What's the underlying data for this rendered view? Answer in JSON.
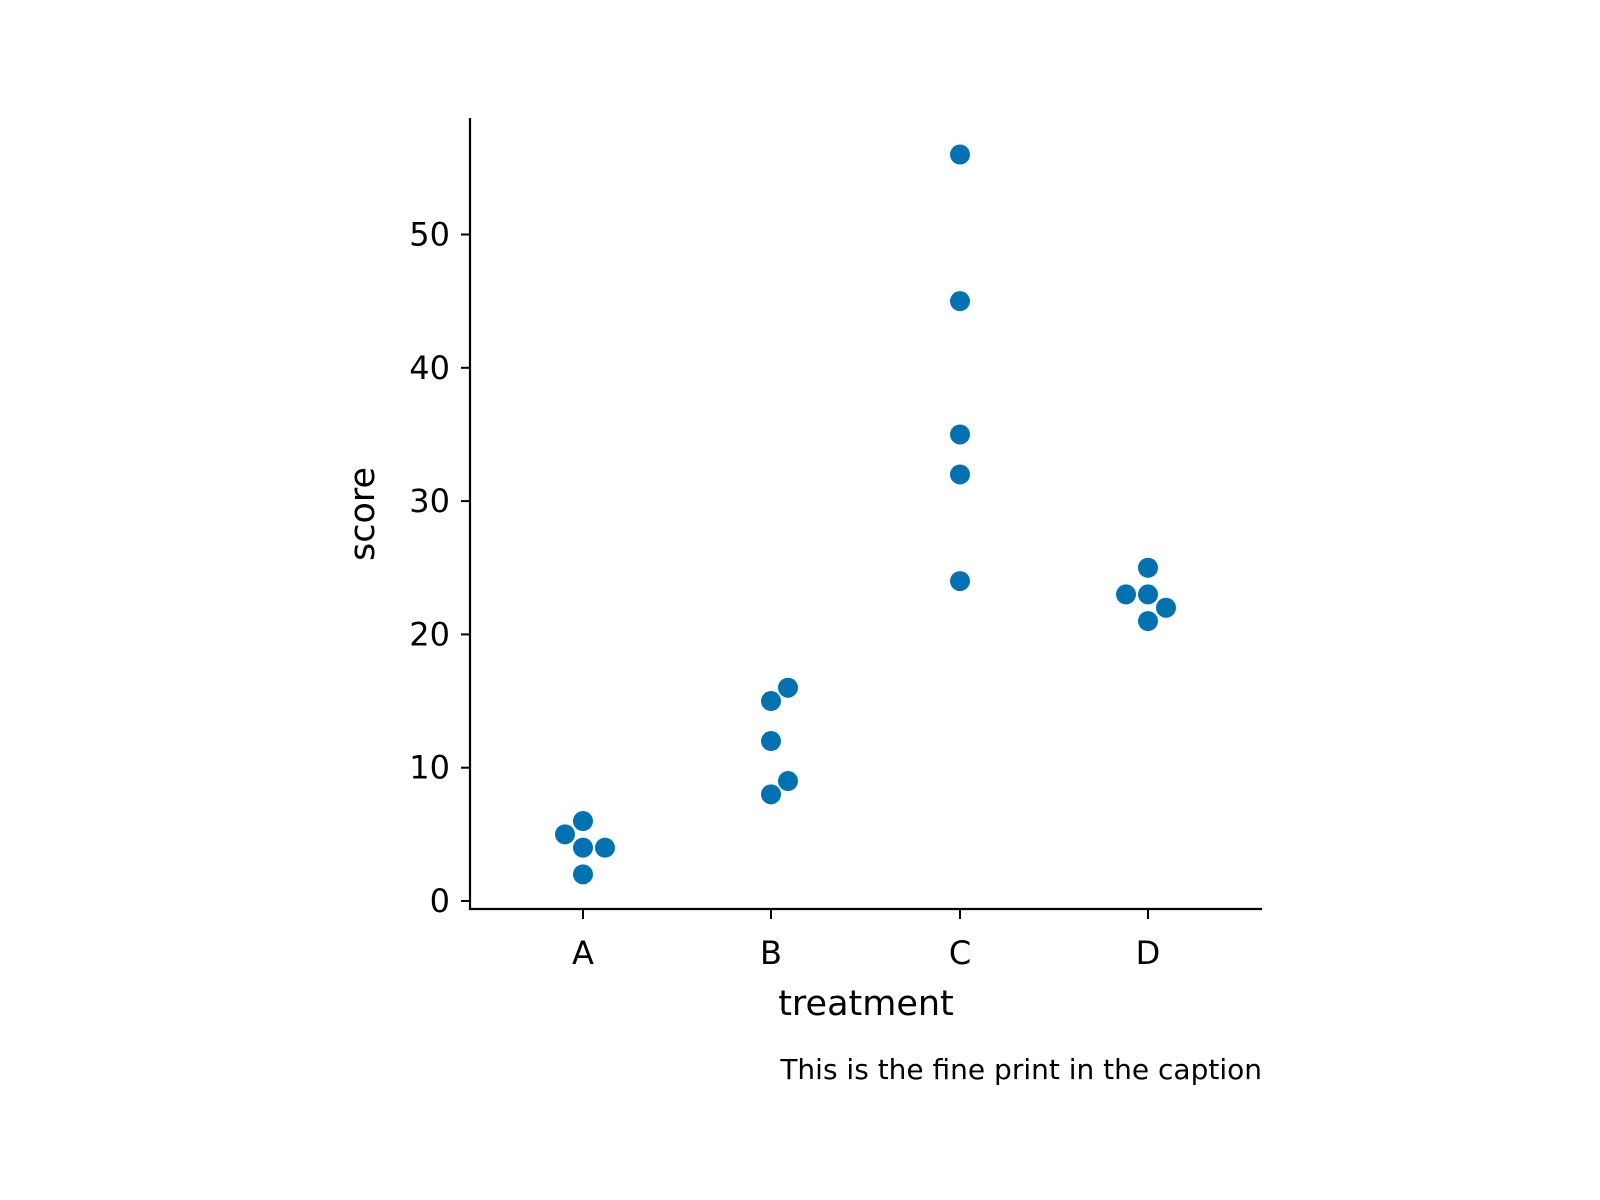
{
  "chart_data": {
    "type": "scatter",
    "xlabel": "treatment",
    "ylabel": "score",
    "caption": "This is the fine print in the caption",
    "categories": [
      "A",
      "B",
      "C",
      "D"
    ],
    "ylim": [
      0,
      58
    ],
    "yticks": [
      0,
      10,
      20,
      30,
      40,
      50
    ],
    "grid": false,
    "legend": "none",
    "point_color": "#0072b2",
    "points": [
      {
        "category": "A",
        "y": 6
      },
      {
        "category": "A",
        "y": 5
      },
      {
        "category": "A",
        "y": 4
      },
      {
        "category": "A",
        "y": 4
      },
      {
        "category": "A",
        "y": 2
      },
      {
        "category": "B",
        "y": 16
      },
      {
        "category": "B",
        "y": 15
      },
      {
        "category": "B",
        "y": 12
      },
      {
        "category": "B",
        "y": 9
      },
      {
        "category": "B",
        "y": 8
      },
      {
        "category": "C",
        "y": 56
      },
      {
        "category": "C",
        "y": 45
      },
      {
        "category": "C",
        "y": 35
      },
      {
        "category": "C",
        "y": 32
      },
      {
        "category": "C",
        "y": 24
      },
      {
        "category": "D",
        "y": 25
      },
      {
        "category": "D",
        "y": 23
      },
      {
        "category": "D",
        "y": 23
      },
      {
        "category": "D",
        "y": 22
      },
      {
        "category": "D",
        "y": 21
      }
    ]
  }
}
